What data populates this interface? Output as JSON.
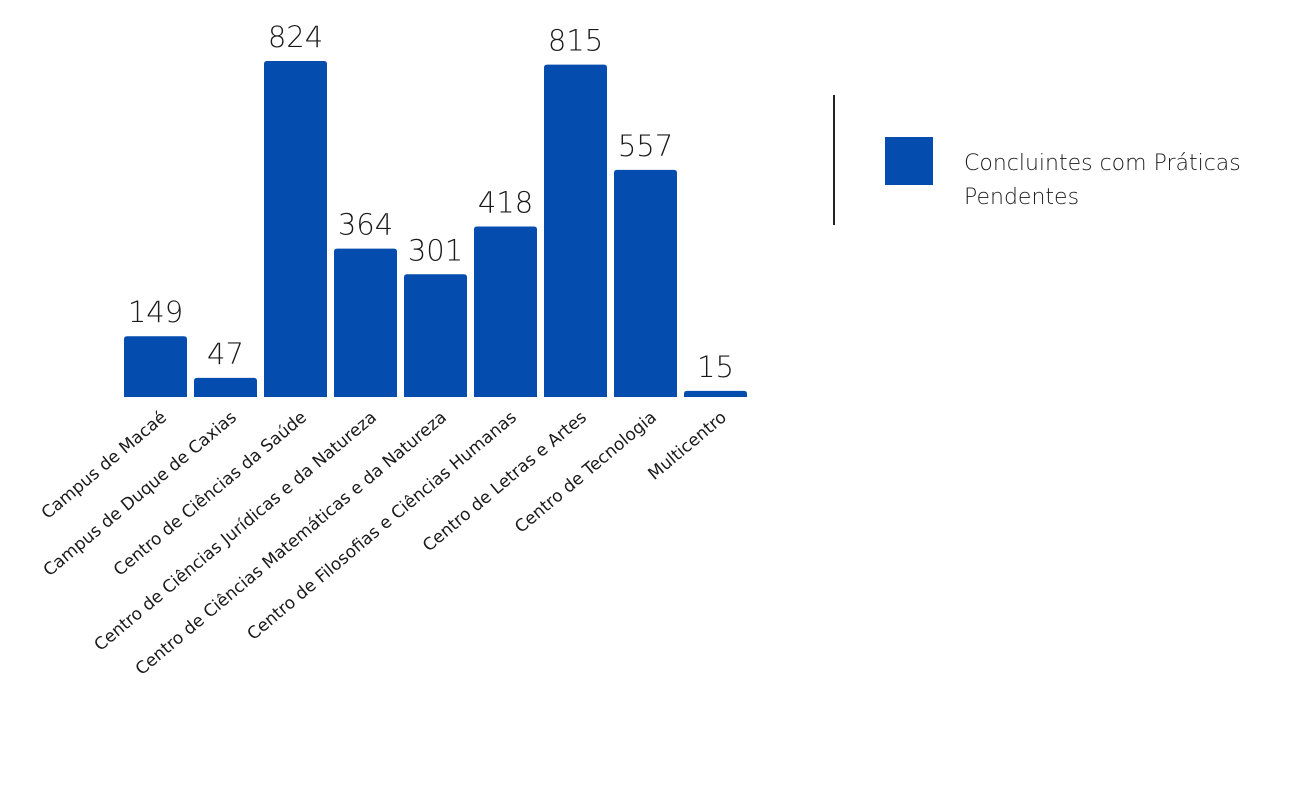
{
  "colors": {
    "bar": "#044CAD",
    "text": "#1a1a1a"
  },
  "chart_data": {
    "type": "bar",
    "categories": [
      "Campus de Macaé",
      "Campus de Duque de Caxias",
      "Centro de Ciências da Saúde",
      "Centro de Ciências Jurídicas e da Natureza",
      "Centro de Ciências Matemáticas e da Natureza",
      "Centro de Filosofias e Ciências Humanas",
      "Centro de Letras e Artes",
      "Centro de Tecnologia",
      "Multicentro"
    ],
    "series": [
      {
        "name": "Concluintes com Práticas\n Pendentes",
        "values": [
          149,
          47,
          824,
          364,
          301,
          418,
          815,
          557,
          15
        ]
      }
    ],
    "ylim": [
      0,
      824
    ],
    "grid": false,
    "legend_position": "right"
  }
}
